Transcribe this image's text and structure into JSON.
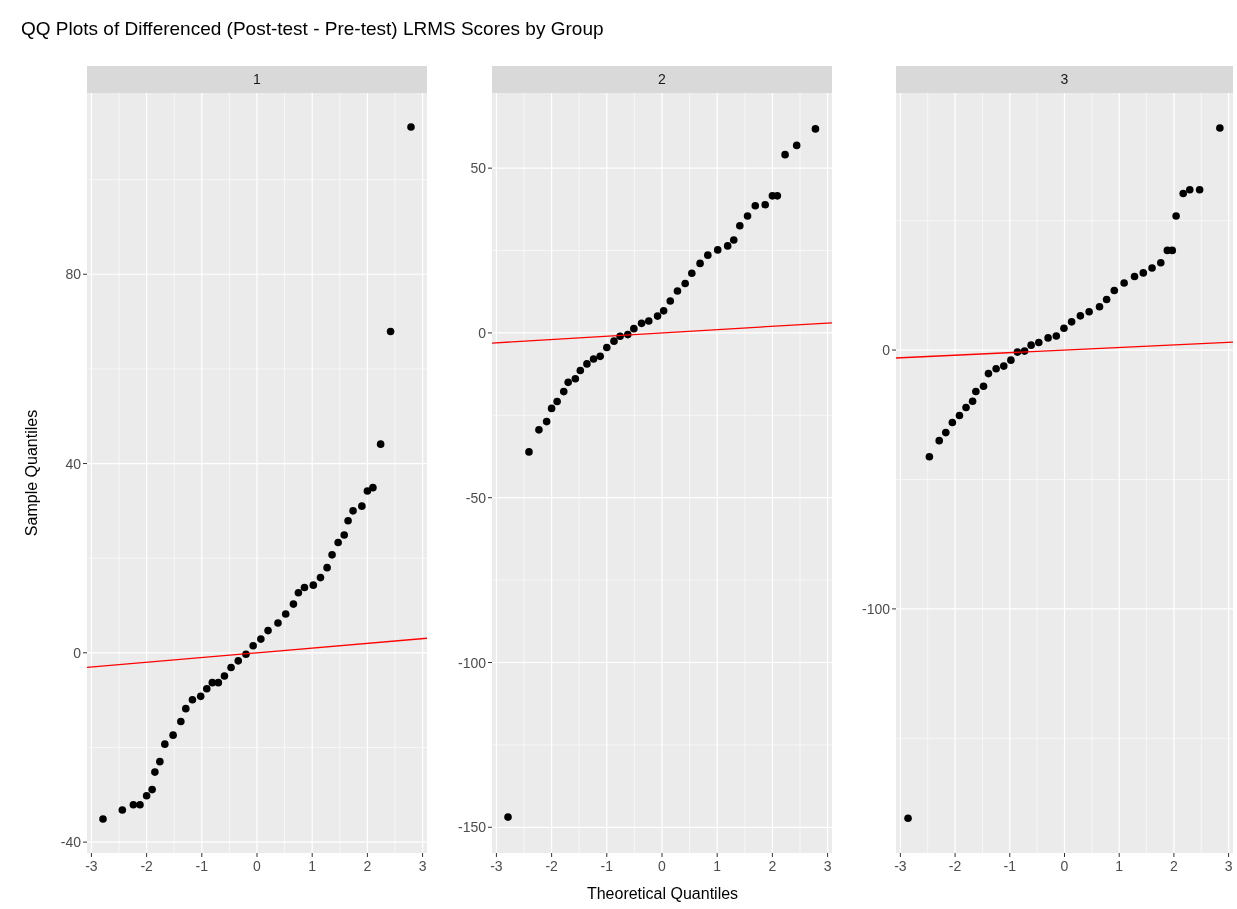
{
  "chart_data": [
    {
      "type": "scatter",
      "title": "QQ Plots of Differenced (Post-test - Pre-test) LRMS Scores by Group",
      "subtitle": "1",
      "ylabel": "Sample Quantiles",
      "xlim": [
        -3.08,
        3.08
      ],
      "ylim": [
        -42.3,
        118.3
      ],
      "xticks": [
        -3,
        -2,
        -1,
        0,
        1,
        2,
        3
      ],
      "yticks": [
        -40,
        0,
        40,
        80
      ],
      "grid": true,
      "series": [
        {
          "marker": "circle",
          "color": "#000000",
          "x": [
            -2.79,
            -2.44,
            -2.24,
            -2.12,
            -2.0,
            -1.9,
            -1.85,
            -1.76,
            -1.67,
            -1.52,
            -1.38,
            -1.29,
            -1.17,
            -1.02,
            -0.91,
            -0.81,
            -0.7,
            -0.59,
            -0.47,
            -0.34,
            -0.2,
            -0.07,
            0.07,
            0.2,
            0.38,
            0.52,
            0.66,
            0.75,
            0.86,
            1.02,
            1.15,
            1.27,
            1.36,
            1.47,
            1.58,
            1.65,
            1.74,
            1.9,
            2.0,
            2.1,
            2.24,
            2.42,
            2.79
          ],
          "values": [
            -35.1,
            -33.2,
            -32.1,
            -32.1,
            -30.2,
            -28.9,
            -25.2,
            -23.0,
            -19.3,
            -17.4,
            -14.5,
            -11.8,
            -9.9,
            -9.2,
            -7.6,
            -6.3,
            -6.3,
            -4.9,
            -3.1,
            -1.7,
            -0.3,
            1.5,
            2.9,
            4.7,
            6.3,
            8.2,
            10.3,
            12.7,
            13.8,
            14.3,
            15.9,
            18.0,
            20.7,
            23.3,
            24.9,
            27.9,
            30.0,
            31.0,
            34.2,
            34.9,
            44.1,
            67.9,
            111.1
          ]
        },
        {
          "type": "line",
          "color": "#ff0000",
          "x": [
            -3.08,
            3.08
          ],
          "values": [
            -3.08,
            3.08
          ]
        }
      ]
    },
    {
      "type": "scatter",
      "subtitle": "2",
      "xlabel": "Theoretical Quantiles",
      "xlim": [
        -3.08,
        3.08
      ],
      "ylim": [
        -157.8,
        72.8
      ],
      "xticks": [
        -3,
        -2,
        -1,
        0,
        1,
        2,
        3
      ],
      "yticks": [
        -150,
        -100,
        -50,
        0,
        50
      ],
      "grid": true,
      "series": [
        {
          "marker": "circle",
          "color": "#000000",
          "x": [
            -2.79,
            -2.41,
            -2.23,
            -2.09,
            -2.0,
            -1.9,
            -1.78,
            -1.7,
            -1.57,
            -1.48,
            -1.36,
            -1.24,
            -1.12,
            -1.0,
            -0.87,
            -0.76,
            -0.62,
            -0.51,
            -0.37,
            -0.24,
            -0.08,
            0.03,
            0.15,
            0.28,
            0.42,
            0.54,
            0.69,
            0.83,
            1.01,
            1.19,
            1.3,
            1.41,
            1.55,
            1.69,
            1.87,
            2.0,
            2.09,
            2.23,
            2.44,
            2.78
          ],
          "values": [
            -146.9,
            -36.1,
            -29.4,
            -26.9,
            -22.9,
            -20.8,
            -17.8,
            -15.0,
            -13.9,
            -11.4,
            -9.4,
            -7.9,
            -7.1,
            -4.4,
            -2.5,
            -1.0,
            -0.5,
            1.3,
            2.9,
            3.6,
            5.1,
            6.7,
            9.7,
            12.7,
            15.0,
            18.1,
            21.1,
            23.6,
            25.2,
            26.4,
            28.2,
            32.5,
            35.5,
            38.6,
            38.9,
            41.6,
            41.6,
            54.1,
            56.9,
            61.9
          ]
        },
        {
          "type": "line",
          "color": "#ff0000",
          "x": [
            -3.08,
            3.08
          ],
          "values": [
            -3.08,
            3.08
          ]
        }
      ]
    },
    {
      "type": "scatter",
      "subtitle": "3",
      "xlim": [
        -3.08,
        3.08
      ],
      "ylim": [
        -194.3,
        99.3
      ],
      "xticks": [
        -3,
        -2,
        -1,
        0,
        1,
        2,
        3
      ],
      "yticks": [
        -100,
        0
      ],
      "grid": true,
      "series": [
        {
          "marker": "circle",
          "color": "#000000",
          "x": [
            -2.86,
            -2.47,
            -2.29,
            -2.17,
            -2.05,
            -1.92,
            -1.8,
            -1.68,
            -1.62,
            -1.48,
            -1.39,
            -1.25,
            -1.11,
            -0.98,
            -0.86,
            -0.73,
            -0.61,
            -0.47,
            -0.3,
            -0.15,
            -0.01,
            0.13,
            0.29,
            0.45,
            0.64,
            0.77,
            0.91,
            1.09,
            1.28,
            1.44,
            1.6,
            1.76,
            1.88,
            1.97,
            2.04,
            2.17,
            2.29,
            2.47,
            2.84
          ],
          "values": [
            -180.9,
            -41.2,
            -35.0,
            -31.9,
            -28.0,
            -25.3,
            -22.2,
            -19.8,
            -16.0,
            -14.0,
            -9.1,
            -7.2,
            -6.2,
            -3.9,
            -0.8,
            -0.4,
            1.9,
            2.9,
            4.7,
            5.4,
            8.4,
            10.9,
            13.2,
            14.8,
            16.7,
            19.5,
            23.0,
            25.9,
            28.4,
            29.8,
            31.7,
            33.7,
            38.5,
            38.5,
            51.8,
            60.5,
            61.9,
            61.9,
            85.8
          ]
        },
        {
          "type": "line",
          "color": "#ff0000",
          "x": [
            -3.08,
            3.08
          ],
          "values": [
            -3.08,
            3.08
          ]
        }
      ]
    }
  ]
}
